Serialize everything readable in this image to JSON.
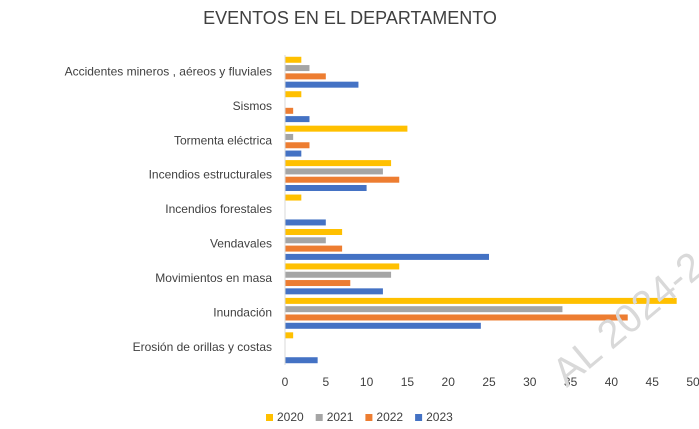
{
  "chart_data": {
    "type": "hbar",
    "title": "EVENTOS EN EL DEPARTAMENTO",
    "categories": [
      "Accidentes mineros , aéreos y fluviales",
      "Sismos",
      "Tormenta eléctrica",
      "Incendios estructurales",
      "Incendios forestales",
      "Vendavales",
      "Movimientos en masa",
      "Inundación",
      "Erosión de orillas y costas"
    ],
    "series": [
      {
        "name": "2020",
        "color": "#ffc000",
        "values": [
          2,
          2,
          15,
          13,
          2,
          7,
          14,
          48,
          1
        ]
      },
      {
        "name": "2021",
        "color": "#a5a5a5",
        "values": [
          3,
          0,
          1,
          12,
          0,
          5,
          13,
          34,
          0
        ]
      },
      {
        "name": "2022",
        "color": "#ed7d31",
        "values": [
          5,
          1,
          3,
          14,
          0,
          7,
          8,
          42,
          0
        ]
      },
      {
        "name": "2023",
        "color": "#4472c4",
        "values": [
          9,
          3,
          2,
          10,
          5,
          25,
          12,
          24,
          4
        ]
      }
    ],
    "xlim": [
      0,
      50
    ],
    "xticks": [
      0,
      5,
      10,
      15,
      20,
      25,
      30,
      35,
      40,
      45,
      50
    ],
    "legend": "bottom",
    "grid": false,
    "watermark": "AL 2024-2"
  }
}
